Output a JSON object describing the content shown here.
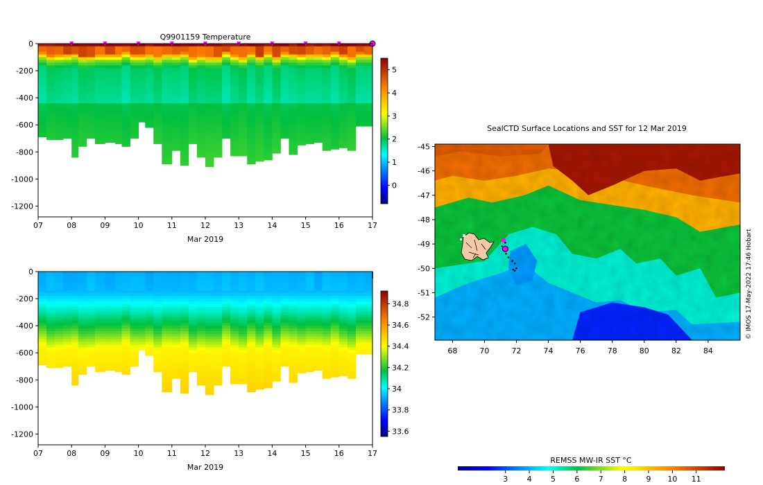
{
  "chart_data": [
    {
      "id": "temperature_section",
      "type": "heatmap",
      "title": "Q9901159  Temperature",
      "xlabel": "Mar 2019",
      "ylabel": "",
      "x_ticks": [
        "07",
        "08",
        "09",
        "10",
        "11",
        "12",
        "13",
        "14",
        "15",
        "16",
        "17"
      ],
      "x_range_days": [
        7,
        17
      ],
      "y_ticks": [
        0,
        -200,
        -400,
        -600,
        -800,
        -1000,
        -1200
      ],
      "ylim": [
        -1280,
        0
      ],
      "colorbar": {
        "min": -0.8,
        "max": 5.5,
        "ticks": [
          0,
          1,
          2,
          3,
          4,
          5
        ]
      },
      "marker_days": [
        8,
        9,
        10,
        11,
        12,
        13,
        14,
        15,
        16
      ],
      "profile_start_days": [
        7.0,
        7.25,
        7.5,
        7.75,
        8.0,
        8.2,
        8.45,
        8.7,
        9.0,
        9.3,
        9.5,
        9.75,
        10.0,
        10.2,
        10.45,
        10.7,
        11.0,
        11.25,
        11.5,
        11.75,
        12.0,
        12.25,
        12.5,
        12.75,
        13.0,
        13.25,
        13.5,
        13.75,
        14.0,
        14.25,
        14.5,
        14.75,
        15.0,
        15.25,
        15.5,
        15.75,
        16.0,
        16.25,
        16.5,
        16.75
      ],
      "profile_max_depth_m": [
        690,
        710,
        710,
        700,
        840,
        760,
        700,
        740,
        730,
        740,
        760,
        700,
        580,
        620,
        740,
        890,
        790,
        900,
        740,
        840,
        910,
        840,
        700,
        830,
        830,
        890,
        870,
        860,
        810,
        700,
        820,
        750,
        740,
        730,
        790,
        780,
        770,
        790,
        610,
        610
      ]
    },
    {
      "id": "salinity_section",
      "type": "heatmap",
      "title": "",
      "xlabel": "Mar 2019",
      "ylabel": "",
      "x_ticks": [
        "07",
        "08",
        "09",
        "10",
        "11",
        "12",
        "13",
        "14",
        "15",
        "16",
        "17"
      ],
      "x_range_days": [
        7,
        17
      ],
      "y_ticks": [
        0,
        -200,
        -400,
        -600,
        -800,
        -1000,
        -1200
      ],
      "ylim": [
        -1280,
        0
      ],
      "colorbar": {
        "min": 33.55,
        "max": 34.92,
        "ticks": [
          33.6,
          33.8,
          34,
          34.2,
          34.4,
          34.6,
          34.8
        ],
        "tick_labels": [
          "33.6",
          "33.8",
          "34",
          "34.2",
          "34.4",
          "34.6",
          "34.8"
        ]
      }
    },
    {
      "id": "sst_map",
      "type": "heatmap",
      "title": "SealCTD Surface Locations and SST for 12 Mar 2019",
      "x_ticks": [
        "68",
        "70",
        "72",
        "74",
        "76",
        "78",
        "80",
        "82",
        "84"
      ],
      "lon_range": [
        66.9,
        86.0
      ],
      "y_ticks": [
        "-45",
        "-46",
        "-47",
        "-48",
        "-49",
        "-50",
        "-51",
        "-52"
      ],
      "lat_range": [
        -52.95,
        -44.9
      ],
      "track_lon": [
        71.2,
        71.3,
        71.1,
        71.2,
        71.35,
        71.5,
        71.75,
        71.9,
        72.0,
        71.9,
        71.8
      ],
      "track_lat": [
        -48.8,
        -48.95,
        -49.1,
        -49.2,
        -49.4,
        -49.55,
        -49.7,
        -49.8,
        -50.0,
        -50.1,
        -50.05
      ],
      "credit": "© IMOS 17-May-2022 17:46 Hobart",
      "colorbar": {
        "label": "REMSS MW-IR SST °C",
        "min": 1.0,
        "max": 12.2,
        "ticks": [
          "3",
          "4",
          "5",
          "6",
          "7",
          "8",
          "9",
          "10",
          "11"
        ]
      }
    }
  ],
  "colors": {
    "land": "#f5c9a4",
    "track": "#000000",
    "marker": "#ff00ff"
  }
}
